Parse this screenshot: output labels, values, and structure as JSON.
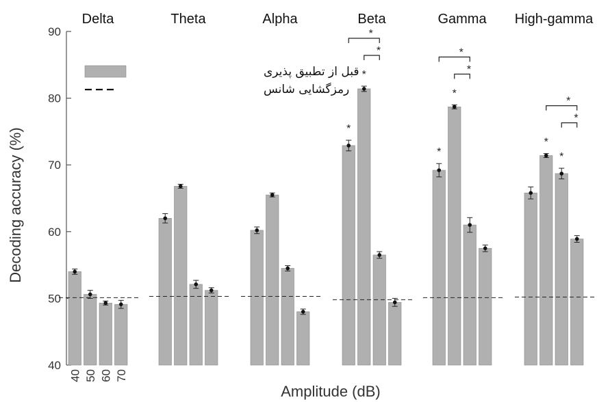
{
  "chart_data": {
    "type": "bar",
    "xlabel": "Amplitude (dB)",
    "ylabel": "Decoding accuracy (%)",
    "ylim": [
      40,
      90
    ],
    "yticks": [
      40,
      50,
      60,
      70,
      80,
      90
    ],
    "amplitudes": [
      "40",
      "50",
      "60",
      "70"
    ],
    "legend": {
      "position": "top-left",
      "bar_label": "قبل از تطبیق پذیری",
      "chance_label": "رمزگشایی شانس"
    },
    "colors": {
      "bar": "#b0b0b0",
      "bar_edge": "#8a8a8a",
      "text": "#333333"
    },
    "groups": [
      {
        "name": "Delta",
        "values": [
          54.0,
          50.6,
          49.3,
          49.1
        ],
        "errors": [
          0.4,
          0.6,
          0.3,
          0.6
        ],
        "chance": 50.1,
        "stars": [],
        "brackets": []
      },
      {
        "name": "Theta",
        "values": [
          62.0,
          66.8,
          52.1,
          51.2
        ],
        "errors": [
          0.7,
          0.3,
          0.6,
          0.4
        ],
        "chance": 50.3,
        "stars": [],
        "brackets": []
      },
      {
        "name": "Alpha",
        "values": [
          60.2,
          65.5,
          54.5,
          48.0
        ],
        "errors": [
          0.5,
          0.3,
          0.4,
          0.4
        ],
        "chance": 50.3,
        "stars": [],
        "brackets": []
      },
      {
        "name": "Beta",
        "values": [
          72.9,
          81.4,
          56.5,
          49.4
        ],
        "errors": [
          0.8,
          0.4,
          0.5,
          0.6
        ],
        "chance": 49.8,
        "stars": [
          0,
          1
        ],
        "brackets": [
          [
            0,
            2
          ],
          [
            1,
            2
          ]
        ]
      },
      {
        "name": "Gamma",
        "values": [
          69.2,
          78.7,
          61.0,
          57.5
        ],
        "errors": [
          1.0,
          0.3,
          1.1,
          0.5
        ],
        "chance": 50.1,
        "stars": [
          0,
          1
        ],
        "brackets": [
          [
            0,
            2
          ],
          [
            1,
            2
          ]
        ]
      },
      {
        "name": "High-gamma",
        "values": [
          65.8,
          71.4,
          68.7,
          58.9
        ],
        "errors": [
          0.9,
          0.3,
          0.8,
          0.5
        ],
        "chance": 50.2,
        "stars": [
          1,
          2
        ],
        "brackets": [
          [
            1,
            3
          ],
          [
            2,
            3
          ]
        ]
      }
    ],
    "star_symbol": "*"
  }
}
